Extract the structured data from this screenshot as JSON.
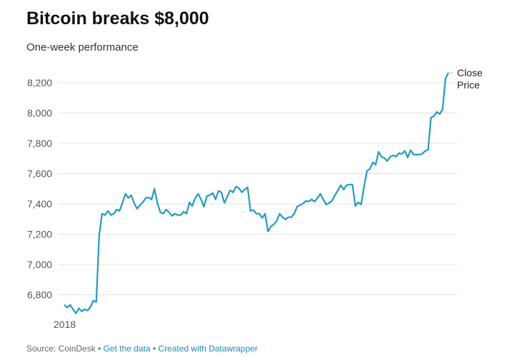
{
  "title": "Bitcoin breaks $8,000",
  "subtitle": "One-week performance",
  "footer": {
    "source": "Source: CoinDesk",
    "sep": " • ",
    "get_data": "Get the data",
    "created": "Created with Datawrapper"
  },
  "colors": {
    "line": "#1f9bc6",
    "grid": "#e3e3e3"
  },
  "chart_data": {
    "type": "line",
    "title": "Bitcoin breaks $8,000",
    "subtitle": "One-week performance",
    "xlabel": "",
    "ylabel": "",
    "x_tick_labels": [
      "2018"
    ],
    "y_ticks": [
      6800,
      7000,
      7200,
      7400,
      7600,
      7800,
      8000,
      8200
    ],
    "y_tick_labels": [
      "6,800",
      "7,000",
      "7,200",
      "7,400",
      "7,600",
      "7,800",
      "8,000",
      "8,200"
    ],
    "ylim": [
      6650,
      8300
    ],
    "grid": true,
    "series": [
      {
        "name": "Close Price",
        "label_lines": [
          "Close",
          "Price"
        ],
        "values": [
          6734,
          6715,
          6734,
          6705,
          6677,
          6710,
          6691,
          6705,
          6696,
          6720,
          6762,
          6752,
          7194,
          7335,
          7326,
          7354,
          7326,
          7335,
          7363,
          7354,
          7406,
          7467,
          7439,
          7457,
          7406,
          7368,
          7392,
          7410,
          7439,
          7443,
          7429,
          7500,
          7406,
          7345,
          7335,
          7363,
          7345,
          7321,
          7335,
          7326,
          7326,
          7349,
          7335,
          7410,
          7387,
          7439,
          7467,
          7429,
          7382,
          7452,
          7457,
          7472,
          7429,
          7486,
          7476,
          7406,
          7448,
          7490,
          7476,
          7514,
          7505,
          7476,
          7495,
          7509,
          7354,
          7359,
          7335,
          7335,
          7307,
          7335,
          7218,
          7251,
          7265,
          7288,
          7335,
          7312,
          7298,
          7312,
          7312,
          7335,
          7382,
          7392,
          7401,
          7420,
          7415,
          7429,
          7415,
          7438,
          7467,
          7429,
          7396,
          7406,
          7420,
          7457,
          7490,
          7523,
          7495,
          7523,
          7528,
          7528,
          7387,
          7410,
          7396,
          7514,
          7617,
          7631,
          7674,
          7660,
          7744,
          7711,
          7702,
          7683,
          7711,
          7721,
          7711,
          7735,
          7730,
          7749,
          7707,
          7754,
          7725,
          7725,
          7725,
          7730,
          7749,
          7758,
          7970,
          7979,
          8007,
          7993,
          8026,
          8228,
          8266
        ]
      }
    ]
  }
}
